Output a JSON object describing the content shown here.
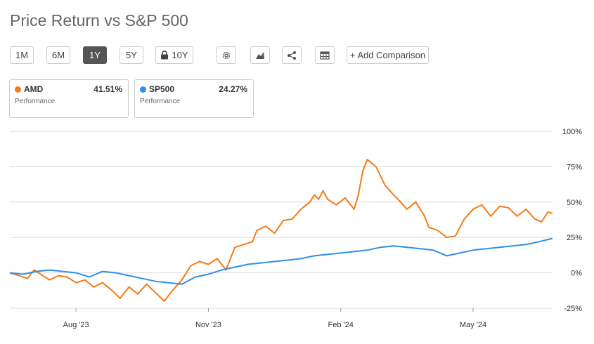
{
  "title": "Price Return vs S&P 500",
  "toolbar": {
    "ranges": [
      "1M",
      "6M",
      "1Y",
      "5Y"
    ],
    "active_range": "1Y",
    "locked_range": "10Y",
    "icons": [
      "gear-icon",
      "mountain-chart-icon",
      "share-icon",
      "table-icon"
    ],
    "add_comparison": "+ Add Comparison"
  },
  "legend": [
    {
      "symbol": "AMD",
      "value": "41.51%",
      "label": "Performance",
      "color": "#f47b16"
    },
    {
      "symbol": "SP500",
      "value": "24.27%",
      "label": "Performance",
      "color": "#2e90e8"
    }
  ],
  "chart_data": {
    "type": "line",
    "title": "Price Return vs S&P 500",
    "ylim": [
      -25,
      100
    ],
    "yticks": [
      100,
      75,
      50,
      25,
      0,
      -25
    ],
    "ytick_labels": [
      "100%",
      "75%",
      "50%",
      "25%",
      "0%",
      "-25%"
    ],
    "xtick_labels": [
      "Aug '23",
      "Nov '23",
      "Feb '24",
      "May '24"
    ],
    "xtick_positions": [
      1.5,
      4.5,
      7.5,
      10.5
    ],
    "xlim": [
      0,
      12.3
    ],
    "x_unit": "months since start (mid-Jun 2023)",
    "grid": "horizontal",
    "series": [
      {
        "name": "AMD",
        "color": "#f47b16",
        "x": [
          0,
          0.2,
          0.4,
          0.55,
          0.7,
          0.9,
          1.1,
          1.3,
          1.5,
          1.7,
          1.9,
          2.1,
          2.3,
          2.5,
          2.7,
          2.9,
          3.1,
          3.3,
          3.5,
          3.7,
          3.9,
          4.1,
          4.3,
          4.5,
          4.7,
          4.9,
          5.1,
          5.3,
          5.5,
          5.6,
          5.8,
          6.0,
          6.2,
          6.4,
          6.6,
          6.8,
          6.9,
          7.0,
          7.1,
          7.2,
          7.4,
          7.6,
          7.8,
          7.9,
          8.0,
          8.1,
          8.3,
          8.5,
          8.7,
          8.8,
          9.0,
          9.2,
          9.4,
          9.5,
          9.7,
          9.9,
          10.1,
          10.3,
          10.5,
          10.7,
          10.9,
          11.1,
          11.3,
          11.5,
          11.7,
          11.9,
          12.05,
          12.2,
          12.3
        ],
        "values": [
          0,
          -2,
          -4,
          2,
          -1,
          -5,
          -2,
          -3,
          -7,
          -5,
          -10,
          -7,
          -12,
          -18,
          -10,
          -15,
          -8,
          -14,
          -20,
          -12,
          -5,
          5,
          8,
          6,
          10,
          2,
          18,
          20,
          22,
          30,
          33,
          28,
          37,
          38,
          45,
          50,
          55,
          52,
          58,
          52,
          48,
          53,
          45,
          55,
          72,
          80,
          75,
          62,
          55,
          52,
          45,
          50,
          40,
          32,
          30,
          25,
          26,
          38,
          45,
          48,
          40,
          47,
          46,
          40,
          45,
          38,
          36,
          43,
          42
        ]
      },
      {
        "name": "SP500",
        "color": "#2e90e8",
        "x": [
          0,
          0.3,
          0.6,
          0.9,
          1.2,
          1.5,
          1.8,
          2.1,
          2.4,
          2.7,
          3.0,
          3.3,
          3.6,
          3.9,
          4.2,
          4.5,
          4.8,
          5.1,
          5.4,
          5.7,
          6.0,
          6.3,
          6.6,
          6.9,
          7.2,
          7.5,
          7.8,
          8.1,
          8.4,
          8.7,
          9.0,
          9.3,
          9.6,
          9.9,
          10.2,
          10.5,
          10.8,
          11.1,
          11.4,
          11.7,
          12.0,
          12.3
        ],
        "values": [
          0,
          -1,
          1,
          2,
          1,
          0,
          -3,
          1,
          0,
          -2,
          -4,
          -6,
          -7,
          -8,
          -3,
          -1,
          2,
          4,
          6,
          7,
          8,
          9,
          10,
          12,
          13,
          14,
          15,
          16,
          18,
          19,
          18,
          17,
          16,
          12,
          14,
          16,
          17,
          18,
          19,
          20,
          22,
          24.3
        ]
      }
    ]
  }
}
